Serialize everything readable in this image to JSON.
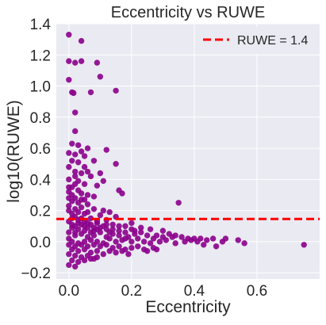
{
  "colors": {
    "background": "#ffffff",
    "plot_area": "#eaeaf2",
    "grid": "#ffffff",
    "points": "#8b008b",
    "threshold_line": "#ff0000",
    "text": "#262626"
  },
  "chart_data": {
    "type": "scatter",
    "title": "Eccentricity vs RUWE",
    "xlabel": "Eccentricity",
    "ylabel": "log10(RUWE)",
    "xlim": [
      -0.04,
      0.8
    ],
    "ylim": [
      -0.24,
      1.4
    ],
    "xticks": [
      0.0,
      0.2,
      0.4,
      0.6
    ],
    "xtick_labels": [
      "0.0",
      "0.2",
      "0.4",
      "0.6"
    ],
    "yticks": [
      -0.2,
      0.0,
      0.2,
      0.4,
      0.6,
      0.8,
      1.0,
      1.2,
      1.4
    ],
    "ytick_labels": [
      "−0.2",
      "0.0",
      "0.2",
      "0.4",
      "0.6",
      "0.8",
      "1.0",
      "1.2",
      "1.4"
    ],
    "grid": true,
    "legend": {
      "location": "upper right",
      "entries": [
        {
          "label": "RUWE = 1.4",
          "style": "dashed-line"
        }
      ]
    },
    "reference_lines": [
      {
        "orientation": "horizontal",
        "y": 0.146,
        "style": "dashed",
        "label": "RUWE = 1.4"
      }
    ],
    "series": [
      {
        "points": [
          [
            0.0,
            1.33
          ],
          [
            0.04,
            1.29
          ],
          [
            0.0,
            1.16
          ],
          [
            0.02,
            1.15
          ],
          [
            0.04,
            1.16
          ],
          [
            0.09,
            1.15
          ],
          [
            0.1,
            1.06
          ],
          [
            0.0,
            1.04
          ],
          [
            0.01,
            0.96
          ],
          [
            0.015,
            0.955
          ],
          [
            0.07,
            0.96
          ],
          [
            0.15,
            0.97
          ],
          [
            0.02,
            0.83
          ],
          [
            0.02,
            0.71
          ],
          [
            0.01,
            0.63
          ],
          [
            0.03,
            0.62
          ],
          [
            0.04,
            0.58
          ],
          [
            0.06,
            0.6
          ],
          [
            0.12,
            0.59
          ],
          [
            0.0,
            0.57
          ],
          [
            0.02,
            0.56
          ],
          [
            0.05,
            0.55
          ],
          [
            0.01,
            0.52
          ],
          [
            0.03,
            0.51
          ],
          [
            0.08,
            0.52
          ],
          [
            0.15,
            0.5
          ],
          [
            0.0,
            0.48
          ],
          [
            0.05,
            0.48
          ],
          [
            0.02,
            0.45
          ],
          [
            0.06,
            0.45
          ],
          [
            0.1,
            0.44
          ],
          [
            0.04,
            0.44
          ],
          [
            0.07,
            0.42
          ],
          [
            0.0,
            0.4
          ],
          [
            0.03,
            0.39
          ],
          [
            0.11,
            0.39
          ],
          [
            0.02,
            0.37
          ],
          [
            0.05,
            0.37
          ],
          [
            0.09,
            0.36
          ],
          [
            0.01,
            0.35
          ],
          [
            0.16,
            0.33
          ],
          [
            0.0,
            0.32
          ],
          [
            0.04,
            0.31
          ],
          [
            0.17,
            0.31
          ],
          [
            0.08,
            0.29
          ],
          [
            0.0,
            0.28
          ],
          [
            0.02,
            0.28
          ],
          [
            0.05,
            0.27
          ],
          [
            0.01,
            0.26
          ],
          [
            0.03,
            0.25
          ],
          [
            0.35,
            0.25
          ],
          [
            0.06,
            0.24
          ],
          [
            0.0,
            0.23
          ],
          [
            0.04,
            0.22
          ],
          [
            0.02,
            0.21
          ],
          [
            0.08,
            0.21
          ],
          [
            0.0,
            0.2
          ],
          [
            0.11,
            0.2
          ],
          [
            0.03,
            0.19
          ],
          [
            0.06,
            0.19
          ],
          [
            0.13,
            0.19
          ],
          [
            0.01,
            0.18
          ],
          [
            0.05,
            0.18
          ],
          [
            0.1,
            0.17
          ],
          [
            0.02,
            0.16
          ],
          [
            0.15,
            0.16
          ],
          [
            0.04,
            0.15
          ],
          [
            0.07,
            0.15
          ],
          [
            0.12,
            0.14
          ],
          [
            0.0,
            0.13
          ],
          [
            0.09,
            0.13
          ],
          [
            0.03,
            0.12
          ],
          [
            0.06,
            0.12
          ],
          [
            0.2,
            0.12
          ],
          [
            0.01,
            0.11
          ],
          [
            0.14,
            0.11
          ],
          [
            0.18,
            0.1
          ],
          [
            0.05,
            0.1
          ],
          [
            0.23,
            0.09
          ],
          [
            0.08,
            0.09
          ],
          [
            0.26,
            0.08
          ],
          [
            0.12,
            0.08
          ],
          [
            0.3,
            0.07
          ],
          [
            0.16,
            0.07
          ],
          [
            0.02,
            0.06
          ],
          [
            0.32,
            0.05
          ],
          [
            0.21,
            0.05
          ],
          [
            0.25,
            0.04
          ],
          [
            0.28,
            0.04
          ],
          [
            0.33,
            0.03
          ],
          [
            0.36,
            0.03
          ],
          [
            0.38,
            0.02
          ],
          [
            0.4,
            0.02
          ],
          [
            0.42,
            0.02
          ],
          [
            0.44,
            0.01
          ],
          [
            0.46,
            0.02
          ],
          [
            0.5,
            0.02
          ],
          [
            0.54,
            0.01
          ],
          [
            0.56,
            -0.01
          ],
          [
            0.31,
            0.01
          ],
          [
            0.29,
            0.0
          ],
          [
            0.34,
            -0.01
          ],
          [
            0.24,
            0.0
          ],
          [
            0.26,
            -0.01
          ],
          [
            0.22,
            0.02
          ],
          [
            0.2,
            0.0
          ],
          [
            0.19,
            0.03
          ],
          [
            0.17,
            0.01
          ],
          [
            0.15,
            0.0
          ],
          [
            0.13,
            0.02
          ],
          [
            0.11,
            -0.01
          ],
          [
            0.09,
            0.0
          ],
          [
            0.07,
            0.01
          ],
          [
            0.05,
            0.0
          ],
          [
            0.03,
            -0.01
          ],
          [
            0.01,
            0.0
          ],
          [
            0.0,
            0.02
          ],
          [
            0.02,
            0.04
          ],
          [
            0.04,
            0.05
          ],
          [
            0.06,
            0.03
          ],
          [
            0.08,
            0.04
          ],
          [
            0.1,
            0.06
          ],
          [
            0.12,
            0.03
          ],
          [
            0.14,
            0.05
          ],
          [
            0.16,
            0.04
          ],
          [
            0.18,
            0.02
          ],
          [
            0.03,
            0.08
          ],
          [
            0.01,
            0.09
          ],
          [
            0.0,
            0.06
          ],
          [
            0.05,
            0.07
          ],
          [
            0.07,
            0.06
          ],
          [
            0.09,
            0.08
          ],
          [
            0.11,
            0.1
          ],
          [
            0.13,
            0.06
          ],
          [
            0.0,
            -0.02
          ],
          [
            0.02,
            -0.03
          ],
          [
            0.04,
            -0.02
          ],
          [
            0.06,
            -0.03
          ],
          [
            0.08,
            -0.02
          ],
          [
            0.1,
            -0.03
          ],
          [
            0.12,
            -0.02
          ],
          [
            0.14,
            -0.04
          ],
          [
            0.16,
            -0.03
          ],
          [
            0.18,
            -0.05
          ],
          [
            0.2,
            -0.04
          ],
          [
            0.22,
            -0.03
          ],
          [
            0.24,
            -0.05
          ],
          [
            0.27,
            -0.04
          ],
          [
            0.01,
            -0.05
          ],
          [
            0.03,
            -0.06
          ],
          [
            0.05,
            -0.05
          ],
          [
            0.07,
            -0.07
          ],
          [
            0.09,
            -0.06
          ],
          [
            0.11,
            -0.08
          ],
          [
            0.13,
            -0.06
          ],
          [
            0.0,
            -0.08
          ],
          [
            0.02,
            -0.09
          ],
          [
            0.04,
            -0.1
          ],
          [
            0.06,
            -0.09
          ],
          [
            0.08,
            -0.11
          ],
          [
            0.01,
            -0.12
          ],
          [
            0.03,
            -0.13
          ],
          [
            0.05,
            -0.12
          ],
          [
            0.0,
            -0.15
          ],
          [
            0.02,
            -0.16
          ],
          [
            0.21,
            0.07
          ],
          [
            0.23,
            0.06
          ],
          [
            0.27,
            0.02
          ],
          [
            0.3,
            0.03
          ],
          [
            0.34,
            0.04
          ],
          [
            0.37,
            0.0
          ],
          [
            0.39,
            0.01
          ],
          [
            0.41,
            0.0
          ],
          [
            0.43,
            -0.02
          ],
          [
            0.47,
            -0.03
          ],
          [
            0.49,
            0.0
          ],
          [
            0.75,
            -0.02
          ],
          [
            0.28,
            -0.05
          ],
          [
            0.25,
            -0.06
          ],
          [
            0.15,
            -0.07
          ],
          [
            0.17,
            -0.06
          ],
          [
            0.19,
            -0.08
          ],
          [
            0.09,
            -0.1
          ],
          [
            0.07,
            -0.11
          ],
          [
            0.01,
            0.3
          ],
          [
            0.03,
            0.33
          ],
          [
            0.02,
            0.42
          ],
          [
            0.0,
            0.35
          ],
          [
            0.04,
            0.27
          ],
          [
            0.06,
            0.3
          ],
          [
            0.03,
            0.14
          ],
          [
            0.01,
            0.15
          ],
          [
            0.05,
            0.13
          ],
          [
            0.07,
            0.11
          ],
          [
            0.09,
            0.12
          ],
          [
            0.02,
            0.1
          ],
          [
            0.04,
            0.11
          ],
          [
            0.06,
            0.09
          ],
          [
            0.08,
            0.07
          ],
          [
            0.1,
            0.09
          ],
          [
            0.12,
            0.11
          ],
          [
            0.14,
            0.08
          ],
          [
            0.16,
            0.1
          ],
          [
            0.18,
            0.06
          ],
          [
            0.2,
            0.08
          ]
        ]
      }
    ]
  }
}
